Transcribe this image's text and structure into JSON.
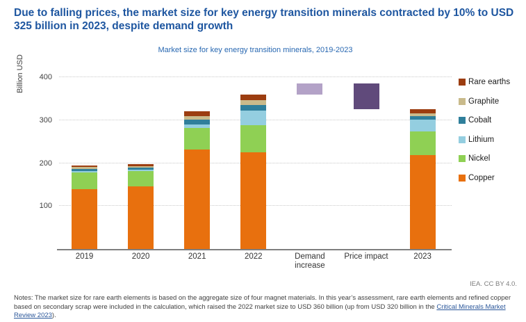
{
  "header": {
    "title": "Due to falling prices, the market size for key energy transition minerals contracted by 10% to USD 325 billion in 2023, despite demand growth"
  },
  "chart_data": {
    "type": "bar",
    "subtype": "stacked-waterfall",
    "title": "Market size for key energy transition minerals, 2019-2023",
    "ylabel": "Billion USD",
    "ylim": [
      0,
      400
    ],
    "yticks": [
      100,
      200,
      300,
      400
    ],
    "grid": "horizontal-dotted",
    "legend_position": "right",
    "stack_order_bottom_to_top": [
      "Copper",
      "Nickel",
      "Lithium",
      "Cobalt",
      "Graphite",
      "Rare earths"
    ],
    "legend": [
      {
        "label": "Rare earths",
        "color": "#9C3D10"
      },
      {
        "label": "Graphite",
        "color": "#C9BA8B"
      },
      {
        "label": "Cobalt",
        "color": "#2F7F9B"
      },
      {
        "label": "Lithium",
        "color": "#94CEE0"
      },
      {
        "label": "Nickel",
        "color": "#8FD054"
      },
      {
        "label": "Copper",
        "color": "#E8700E"
      }
    ],
    "columns": [
      {
        "label": "2019",
        "kind": "stack",
        "total": 195,
        "values": {
          "Copper": 140,
          "Nickel": 38,
          "Lithium": 4,
          "Cobalt": 5,
          "Graphite": 4,
          "Rare earths": 4
        }
      },
      {
        "label": "2020",
        "kind": "stack",
        "total": 198,
        "values": {
          "Copper": 146,
          "Nickel": 35,
          "Lithium": 4,
          "Cobalt": 4,
          "Graphite": 4,
          "Rare earths": 5
        }
      },
      {
        "label": "2021",
        "kind": "stack",
        "total": 320,
        "values": {
          "Copper": 232,
          "Nickel": 50,
          "Lithium": 8,
          "Cobalt": 12,
          "Graphite": 8,
          "Rare earths": 10
        }
      },
      {
        "label": "2022",
        "kind": "stack",
        "total": 360,
        "values": {
          "Copper": 225,
          "Nickel": 63,
          "Lithium": 34,
          "Cobalt": 13,
          "Graphite": 11,
          "Rare earths": 14
        }
      },
      {
        "label": "Demand increase",
        "kind": "float",
        "from": 360,
        "to": 385,
        "change": 25,
        "color": "#B3A2C7"
      },
      {
        "label": "Price impact",
        "kind": "float",
        "from": 385,
        "to": 325,
        "change": -60,
        "color": "#604A7B"
      },
      {
        "label": "2023",
        "kind": "stack",
        "total": 325,
        "values": {
          "Copper": 219,
          "Nickel": 55,
          "Lithium": 27,
          "Cobalt": 9,
          "Graphite": 6,
          "Rare earths": 9
        }
      }
    ]
  },
  "footer": {
    "credit": "IEA. CC BY 4.0.",
    "notes_before_link": "Notes: The market size for rare earth elements is based on the aggregate size of four magnet materials. In this year’s assessment, rare earth elements and refined copper based on secondary scrap were included in the calculation, which raised the 2022 market size to USD 360 billion (up from USD 320 billion in the ",
    "notes_link": "Critical Minerals Market Review 2023",
    "notes_after_link": ")."
  }
}
